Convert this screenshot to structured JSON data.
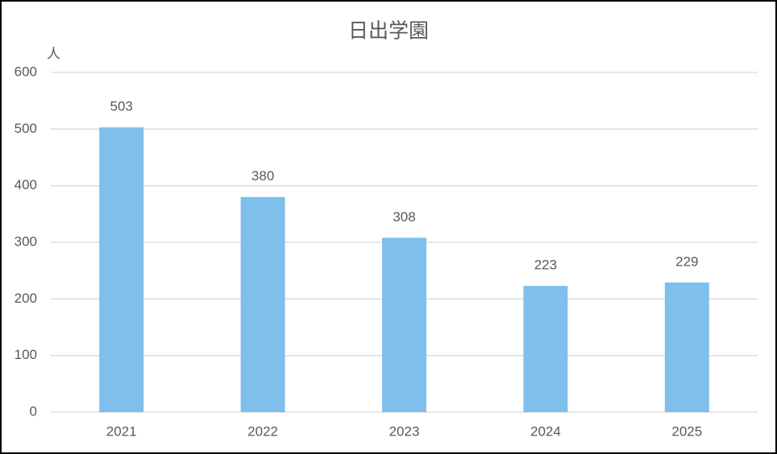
{
  "chart_data": {
    "type": "bar",
    "title": "日出学園",
    "y_label": "人",
    "categories": [
      "2021",
      "2022",
      "2023",
      "2024",
      "2025"
    ],
    "values": [
      503,
      380,
      308,
      223,
      229
    ],
    "color": "#7fbfec",
    "ylim": [
      0,
      600
    ],
    "yticks": [
      0,
      100,
      200,
      300,
      400,
      500,
      600
    ],
    "grid": true
  }
}
